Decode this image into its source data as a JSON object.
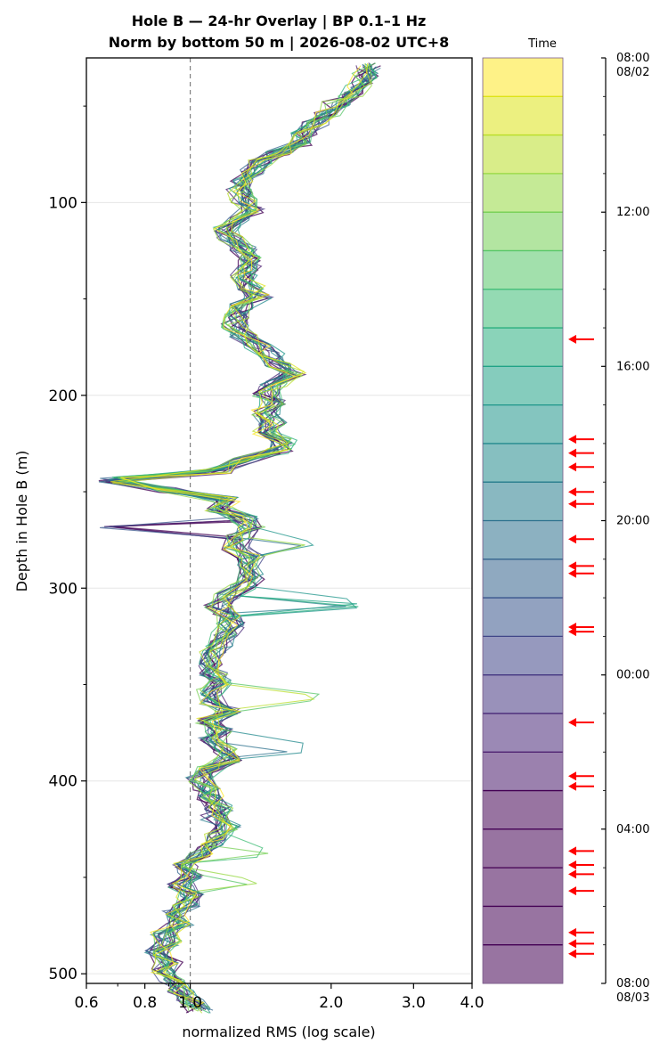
{
  "chart_data": {
    "type": "line",
    "title_line1": "Hole B — 24-hr Overlay  |  BP 0.1–1 Hz",
    "title_line2": "Norm by bottom 50 m  |  2026-08-02 UTC+8",
    "xlabel": "normalized RMS  (log scale)",
    "ylabel": "Depth in Hole B (m)",
    "x_scale": "log",
    "xlim": [
      0.6,
      4.0
    ],
    "ylim": [
      505,
      25
    ],
    "x_ticks": [
      {
        "value": 0.6,
        "label": "0.6"
      },
      {
        "value": 0.8,
        "label": "0.8"
      },
      {
        "value": 1.0,
        "label": "1.0"
      },
      {
        "value": 2.0,
        "label": "2.0"
      },
      {
        "value": 3.0,
        "label": "3.0"
      },
      {
        "value": 4.0,
        "label": "4.0"
      }
    ],
    "y_ticks": [
      {
        "value": 100,
        "label": "100"
      },
      {
        "value": 200,
        "label": "200"
      },
      {
        "value": 300,
        "label": "300"
      },
      {
        "value": 400,
        "label": "400"
      },
      {
        "value": 500,
        "label": "500"
      }
    ],
    "y_minor": [
      50,
      150,
      250,
      350,
      450
    ],
    "reference_line_x": 1.0,
    "grid": true,
    "series_count": 24,
    "colormap": "viridis",
    "depth_start": 29,
    "depth_step": 5,
    "profile_median": [
      2.4,
      2.35,
      2.3,
      2.2,
      2.05,
      1.95,
      1.85,
      1.75,
      1.7,
      1.55,
      1.4,
      1.35,
      1.3,
      1.28,
      1.3,
      1.35,
      1.25,
      1.2,
      1.22,
      1.3,
      1.32,
      1.35,
      1.3,
      1.35,
      1.4,
      1.3,
      1.25,
      1.25,
      1.3,
      1.4,
      1.5,
      1.55,
      1.65,
      1.5,
      1.45,
      1.5,
      1.45,
      1.5,
      1.45,
      1.6,
      1.55,
      1.3,
      1.15,
      0.68,
      0.9,
      1.2,
      1.15,
      1.3,
      1.35,
      1.28,
      1.25,
      1.35,
      1.3,
      1.35,
      1.3,
      1.2,
      1.15,
      1.2,
      1.22,
      1.18,
      1.15,
      1.12,
      1.1,
      1.12,
      1.15,
      1.1,
      1.12,
      1.2,
      1.1,
      1.15,
      1.12,
      1.18,
      1.2,
      1.1,
      1.05,
      1.08,
      1.1,
      1.15,
      1.12,
      1.2,
      1.15,
      1.1,
      1.05,
      0.98,
      1.0,
      0.95,
      1.0,
      0.98,
      0.92,
      0.95,
      0.88,
      0.9,
      0.85,
      0.9,
      0.88,
      0.92,
      0.95,
      1.0,
      1.05
    ],
    "spikes": [
      {
        "depth": 270,
        "value": 0.68,
        "series": [
          23,
          22,
          18,
          14
        ]
      },
      {
        "depth": 277,
        "value": 1.85,
        "series": [
          3,
          9,
          12
        ]
      },
      {
        "depth": 308,
        "value": 2.25,
        "series": [
          11,
          9,
          8,
          7
        ]
      },
      {
        "depth": 357,
        "value": 1.85,
        "series": [
          1,
          2,
          5
        ]
      },
      {
        "depth": 383,
        "value": 1.75,
        "series": [
          12,
          10
        ]
      },
      {
        "depth": 437,
        "value": 1.5,
        "series": [
          6,
          4
        ]
      },
      {
        "depth": 453,
        "value": 1.4,
        "series": [
          3,
          5
        ]
      }
    ]
  },
  "colorbar": {
    "label": "Time",
    "levels": 24,
    "colors": [
      "#fde725",
      "#dde318",
      "#bade28",
      "#95d840",
      "#75d054",
      "#56c667",
      "#3dbc74",
      "#29af7f",
      "#20a386",
      "#1f968b",
      "#238a8d",
      "#287d8e",
      "#2d718e",
      "#33638d",
      "#39558c",
      "#404688",
      "#453781",
      "#482878",
      "#481a6c",
      "#440154",
      "#440154",
      "#440154",
      "#440154",
      "#440154"
    ],
    "tick_labels": [
      {
        "frac": 0.0,
        "line1": "08:00",
        "line2": "08/02"
      },
      {
        "frac": 0.1667,
        "line1": "12:00",
        "line2": ""
      },
      {
        "frac": 0.3333,
        "line1": "16:00",
        "line2": ""
      },
      {
        "frac": 0.5,
        "line1": "20:00",
        "line2": ""
      },
      {
        "frac": 0.6667,
        "line1": "00:00",
        "line2": ""
      },
      {
        "frac": 0.8333,
        "line1": "04:00",
        "line2": ""
      },
      {
        "frac": 1.0,
        "line1": "08:00",
        "line2": "08/03"
      }
    ],
    "arrow_fracs": [
      0.304,
      0.412,
      0.427,
      0.442,
      0.469,
      0.482,
      0.52,
      0.549,
      0.557,
      0.615,
      0.62,
      0.718,
      0.776,
      0.787,
      0.857,
      0.872,
      0.882,
      0.9,
      0.945,
      0.957,
      0.968
    ],
    "arrow_color": "#ff0000"
  }
}
